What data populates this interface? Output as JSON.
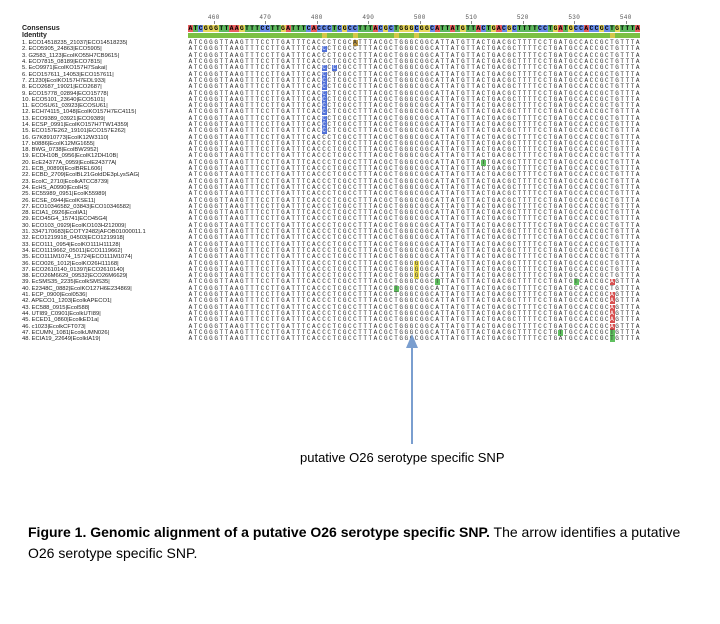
{
  "ruler": {
    "start": 455,
    "end": 548,
    "ticks": [
      460,
      470,
      480,
      490,
      500,
      510,
      520,
      530,
      540
    ],
    "emphasis": 488
  },
  "consensus": "ATCGGGTTAAGTTTCCTTGATTTCACCCTCGCCTTTACGCTGGGCGGCATTATGTTACTGACGCTTTTCCTGATGCCACCGCTGTTTA",
  "identity_variants": [
    26,
    32,
    40,
    44,
    82
  ],
  "labels": [
    "1. ECO14518235_21037|ECO14518235|",
    "2. ECO5905_24863|ECO5905|",
    "3. G2583_1123|EcolKO55H7CB9615|",
    "4. ECO7815_08189|ECO7815|",
    "5. EcO9971|EcolKO157H7Sakai|",
    "6. ECO157611_14053|ECO157611|",
    "7. Z1230|EcolKO157H7EDL933|",
    "8. ECO2687_19021|ECO2687|",
    "9. ECO15778_02894|ECO15778|",
    "10. ECO5101_23640|ECO5101|",
    "11. ECOSU61_03923|ECOSU61|",
    "12. ECH74115_1048|EcolKO157H7EC4115|",
    "13. ECO9389_03921|ECO9389|",
    "14. ECSP_0991|EcolKO157H7TW14359|",
    "15. ECO157E262_19101|ECO157E262|",
    "16. G7K8910773|EcolK12W3110|",
    "17. b0886|EcolK12MG1655|",
    "18. BWG_0738|EcolBW2952|",
    "19. ECDH10B_0956|EcolK12DH10B|",
    "20. EcE24377A_0959|EcolE24377A|",
    "21. ECB_00890|EcolBREL606|",
    "22. ECBD_2709|EcolBL21GoldDE3pLysSAG|",
    "23. EcolC_2710|EcolkATCC8739|",
    "24. EcHS_A0990|EcolHS|",
    "25. EC55989_0951|EcolK55989|",
    "26. ECSE_0944|EcolKSE11|",
    "27. ECO10346582_03843|ECO10346582|",
    "28. ECIA1_0926|EcolIA1|",
    "29. ECO45G4_15741|ECO45G4|",
    "30. ECO103_0929|EcolKO103H212009|",
    "31. 3347170683|ECOTY2482|AFOB01000011.1",
    "32. ECO1219918_04503|ECO1219918|",
    "33. ECO111_0954|EcolKO111H11128|",
    "34. ECO1119662_05011|ECO1119662|",
    "35. ECO111M1074_15724|ECO111M1074|",
    "36. ECO026_1012|EcolKO26H11168|",
    "37. ECO2610140_01397|ECO2610140|",
    "38. ECO26M6629_09532|ECO26M6629|",
    "39. EcSMS35_2235|EcolkSMS35|",
    "40. E2348C_0882|EcolKO127H6E234869|",
    "41. ECP_0900|Ecol0536|",
    "42. APECO1_1203|EcolkAPECO1|",
    "43. EC588_0915|Ecol588|",
    "44. UTI89_C0901|EcolkUTI89|",
    "45. ECED1_0860|EcolkED1a|",
    "46. c1023|EcolkCFT073|",
    "47. ECUMN_1081|EcolkUMN026|",
    "48. ECIA19_22649|EcolkIA19|"
  ],
  "highlights": {
    "0": [
      {
        "p": 32,
        "c": "brown"
      }
    ],
    "1": [
      {
        "p": 26,
        "c": "blue"
      }
    ],
    "4": [
      {
        "p": 26,
        "c": "blue"
      },
      {
        "p": 28,
        "c": "blue"
      }
    ],
    "5": [
      {
        "p": 26,
        "c": "blue"
      }
    ],
    "6": [
      {
        "p": 26,
        "c": "blue"
      }
    ],
    "7": [
      {
        "p": 26,
        "c": "blue"
      }
    ],
    "8": [
      {
        "p": 26,
        "c": "blue"
      }
    ],
    "9": [
      {
        "p": 26,
        "c": "blue"
      }
    ],
    "10": [
      {
        "p": 26,
        "c": "blue"
      }
    ],
    "11": [
      {
        "p": 26,
        "c": "blue"
      }
    ],
    "12": [
      {
        "p": 26,
        "c": "blue"
      }
    ],
    "13": [
      {
        "p": 26,
        "c": "blue"
      }
    ],
    "14": [
      {
        "p": 26,
        "c": "blue"
      }
    ],
    "19": [
      {
        "p": 57,
        "c": "green"
      }
    ],
    "35": [
      {
        "p": 44,
        "c": "yellow"
      }
    ],
    "36": [
      {
        "p": 44,
        "c": "yellow"
      }
    ],
    "37": [
      {
        "p": 44,
        "c": "yellow"
      }
    ],
    "38": [
      {
        "p": 48,
        "c": "green"
      },
      {
        "p": 75,
        "c": "green"
      },
      {
        "p": 82,
        "c": "red"
      }
    ],
    "39": [
      {
        "p": 40,
        "c": "green"
      }
    ],
    "40": [
      {
        "p": 82,
        "c": "red"
      }
    ],
    "41": [
      {
        "p": 82,
        "c": "red"
      }
    ],
    "42": [
      {
        "p": 82,
        "c": "red"
      }
    ],
    "43": [
      {
        "p": 82,
        "c": "red"
      }
    ],
    "44": [
      {
        "p": 82,
        "c": "red"
      }
    ],
    "45": [
      {
        "p": 82,
        "c": "red"
      }
    ],
    "46": [
      {
        "p": 72,
        "c": "green"
      },
      {
        "p": 82,
        "c": "green"
      }
    ],
    "47": [
      {
        "p": 82,
        "c": "green"
      }
    ]
  },
  "arrow_label": "putative O26 serotype specific SNP",
  "caption_bold": "Figure 1.  Genomic alignment of a putative O26 serotype specific SNP.",
  "caption_rest": "  The arrow identifies a putative O26 serotype specific SNP.",
  "colors": {
    "A": "#e85d5d",
    "T": "#5db85d",
    "C": "#6a8de8",
    "G": "#e8d85d",
    "arrow": "#7a9ecf"
  }
}
